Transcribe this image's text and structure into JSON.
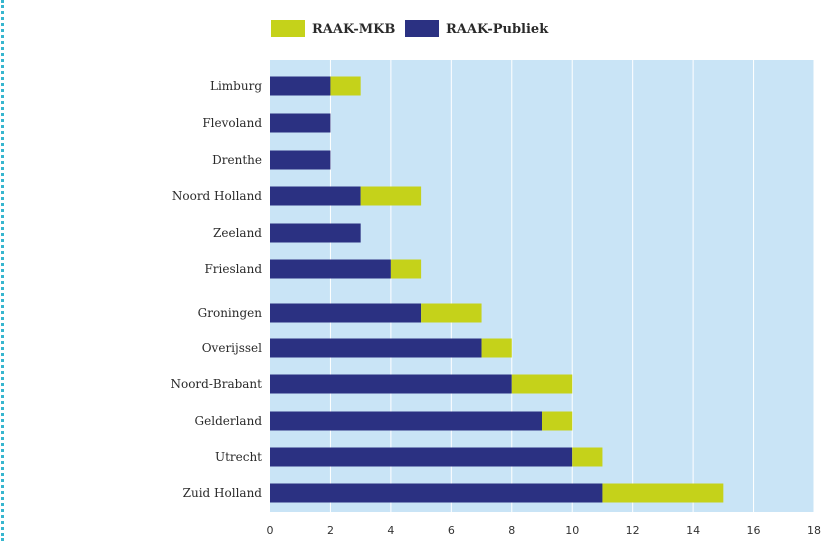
{
  "chart_data": {
    "type": "bar",
    "orientation": "horizontal",
    "stacked": true,
    "categories": [
      "Limburg",
      "Flevoland",
      "Drenthe",
      "Noord Holland",
      "Zeeland",
      "Friesland",
      "Groningen",
      "Overijssel",
      "Noord-Brabant",
      "Gelderland",
      "Utrecht",
      "Zuid Holland"
    ],
    "series": [
      {
        "name": "RAAK-Publiek",
        "color": "#2b3182",
        "values": [
          2,
          2,
          2,
          3,
          3,
          4,
          5,
          7,
          8,
          9,
          10,
          11
        ]
      },
      {
        "name": "RAAK-MKB",
        "color": "#c5d21a",
        "values": [
          1,
          0,
          0,
          2,
          0,
          1,
          2,
          1,
          2,
          1,
          1,
          4
        ]
      }
    ],
    "legend_order": [
      "RAAK-MKB",
      "RAAK-Publiek"
    ],
    "xlim": [
      0,
      18
    ],
    "xticks": [
      0,
      2,
      4,
      6,
      8,
      10,
      12,
      14,
      16,
      18
    ],
    "grid": "vertical",
    "legend_position": "top",
    "plot_background": "#c9e4f6"
  }
}
